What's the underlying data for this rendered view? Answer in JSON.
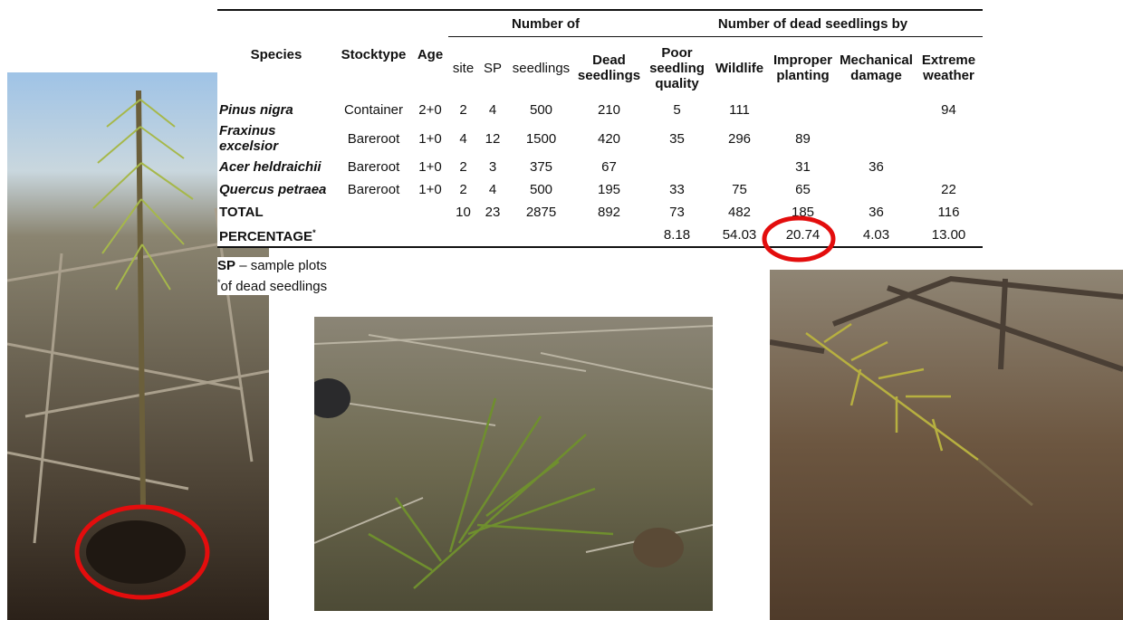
{
  "table": {
    "group_headers": [
      "Number of",
      "Number of dead seedlings by"
    ],
    "headers": [
      "Species",
      "Stocktype",
      "Age",
      "site",
      "SP",
      "seedlings",
      "Dead seedlings",
      "Poor seedling quality",
      "Wildlife",
      "Improper planting",
      "Mechanical damage",
      "Extreme weather"
    ],
    "rows": [
      [
        "Pinus nigra",
        "Container",
        "2+0",
        "2",
        "4",
        "500",
        "210",
        "5",
        "111",
        null,
        null,
        "94"
      ],
      [
        "Fraxinus excelsior",
        "Bareroot",
        "1+0",
        "4",
        "12",
        "1500",
        "420",
        "35",
        "296",
        "89",
        null,
        null
      ],
      [
        "Acer heldraichii",
        "Bareroot",
        "1+0",
        "2",
        "3",
        "375",
        "67",
        null,
        null,
        "31",
        "36",
        null
      ],
      [
        "Quercus petraea",
        "Bareroot",
        "1+0",
        "2",
        "4",
        "500",
        "195",
        "33",
        "75",
        "65",
        null,
        "22"
      ],
      [
        "TOTAL",
        null,
        null,
        "10",
        "23",
        "2875",
        "892",
        "73",
        "482",
        "185",
        "36",
        "116"
      ],
      [
        "PERCENTAGE",
        null,
        null,
        null,
        null,
        null,
        null,
        "8.18",
        "54.03",
        "20.74",
        "4.03",
        "13.00"
      ]
    ],
    "footnote_mark": "*"
  },
  "notes": [
    {
      "term": "SP",
      "text": "– sample plots"
    },
    {
      "mark": "*",
      "text": "of dead seedlings"
    }
  ]
}
